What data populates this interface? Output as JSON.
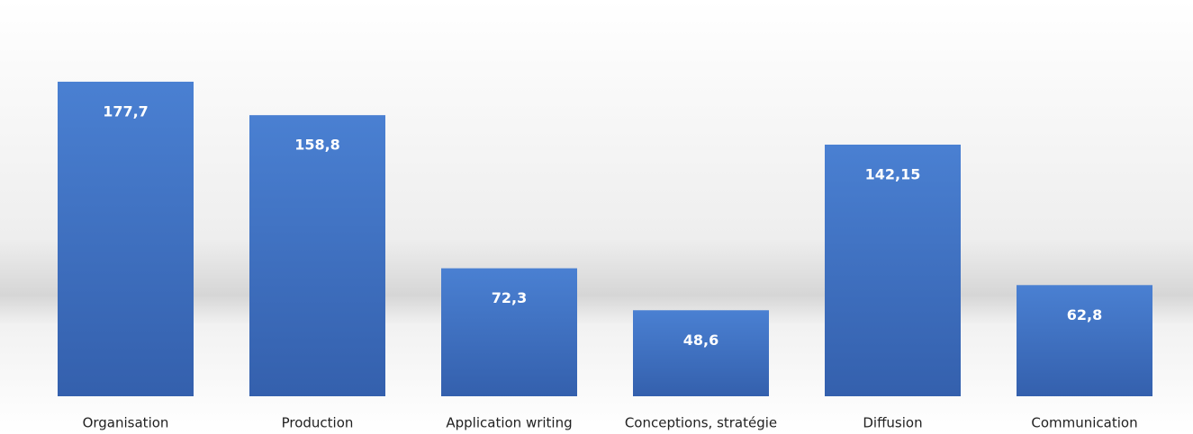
{
  "chart_data": {
    "type": "bar",
    "categories": [
      "Organisation",
      "Production",
      "Application writing",
      "Conceptions, stratégie",
      "Diffusion",
      "Communication"
    ],
    "values": [
      177.7,
      158.8,
      72.3,
      48.6,
      142.15,
      62.8
    ],
    "value_labels": [
      "177,7",
      "158,8",
      "72,3",
      "48,6",
      "142,15",
      "62,8"
    ],
    "color": "#3f72c6",
    "ylim": [
      0,
      200
    ]
  }
}
